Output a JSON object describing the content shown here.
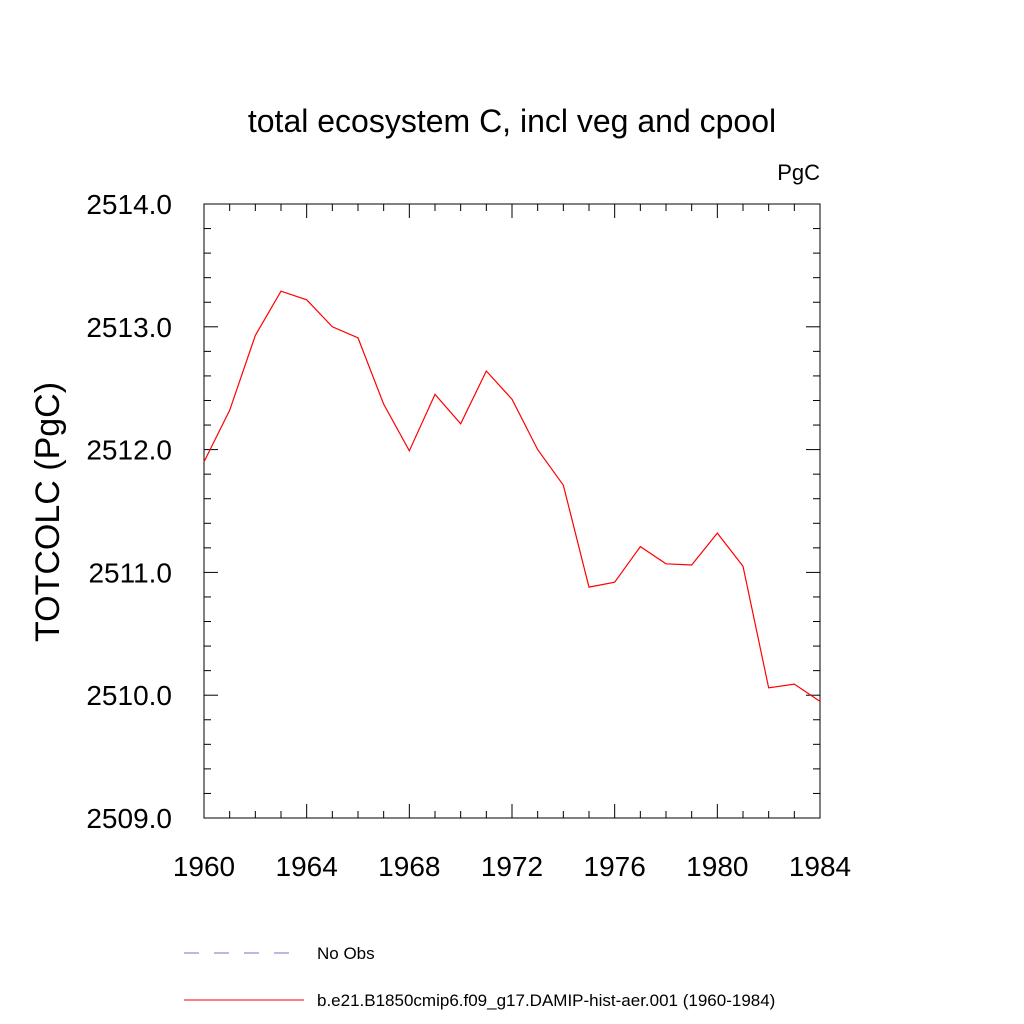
{
  "chart_data": {
    "type": "line",
    "title": "total ecosystem C, incl veg and cpool",
    "units_label": "PgC",
    "ylabel": "TOTCOLC  (PgC)",
    "xlabel": "",
    "xlim": [
      1960,
      1984
    ],
    "ylim": [
      2509.0,
      2514.0
    ],
    "x_ticks": [
      1960,
      1964,
      1968,
      1972,
      1976,
      1980,
      1984
    ],
    "x_tick_labels": [
      "1960",
      "1964",
      "1968",
      "1972",
      "1976",
      "1980",
      "1984"
    ],
    "y_ticks": [
      2509.0,
      2510.0,
      2511.0,
      2512.0,
      2513.0,
      2514.0
    ],
    "y_tick_labels": [
      "2509.0",
      "2510.0",
      "2511.0",
      "2512.0",
      "2513.0",
      "2514.0"
    ],
    "grid": false,
    "legend_position": "bottom",
    "series": [
      {
        "name": "b.e21.B1850cmip6.f09_g17.DAMIP-hist-aer.001 (1960-1984)",
        "color": "#ff0000",
        "style": "solid",
        "x": [
          1960,
          1961,
          1962,
          1963,
          1964,
          1965,
          1966,
          1967,
          1968,
          1969,
          1970,
          1971,
          1972,
          1973,
          1974,
          1975,
          1976,
          1977,
          1978,
          1979,
          1980,
          1981,
          1982,
          1983,
          1984
        ],
        "values": [
          2511.9,
          2512.32,
          2512.93,
          2513.29,
          2513.22,
          2513.0,
          2512.91,
          2512.37,
          2511.99,
          2512.45,
          2512.21,
          2512.64,
          2512.41,
          2512.0,
          2511.71,
          2510.88,
          2510.92,
          2511.21,
          2511.07,
          2511.06,
          2511.32,
          2511.05,
          2510.06,
          2510.09,
          2509.95
        ]
      }
    ],
    "legend": [
      {
        "label": "No Obs",
        "color": "#7b6fc4",
        "style": "dashed"
      },
      {
        "label": "b.e21.B1850cmip6.f09_g17.DAMIP-hist-aer.001 (1960-1984)",
        "color": "#ff0000",
        "style": "solid"
      }
    ]
  }
}
